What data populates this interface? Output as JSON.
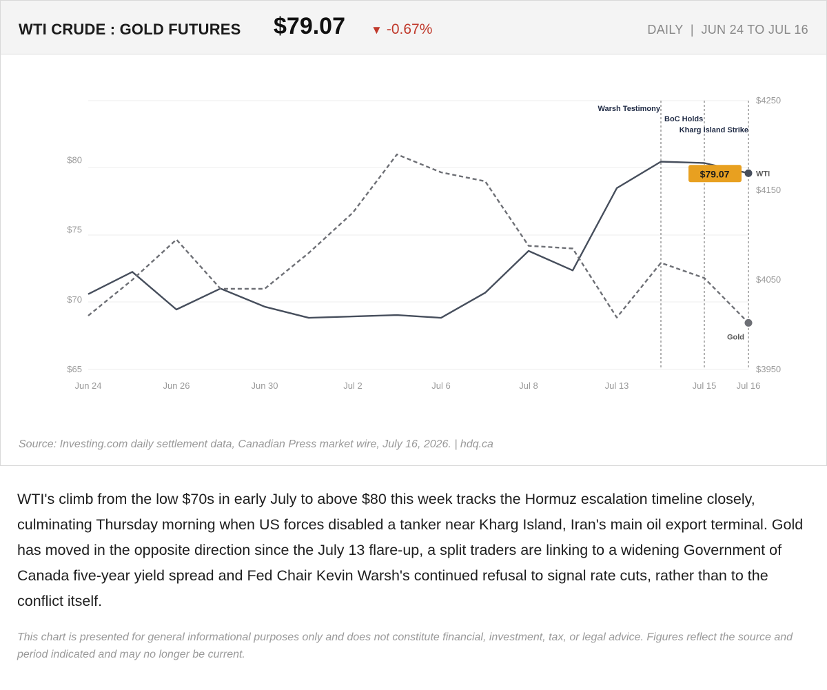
{
  "header": {
    "title": "WTI CRUDE : GOLD FUTURES",
    "price": "$79.07",
    "change_arrow": "▼",
    "change": "-0.67%",
    "period": "DAILY  |  JUN 24 TO JUL 16"
  },
  "source": "Source: Investing.com daily settlement data, Canadian Press market wire, July 16, 2026.  |  hdq.ca",
  "body_text": "WTI's climb from the low $70s in early July to above $80 this week tracks the Hormuz escalation timeline closely, culminating Thursday morning when US forces disabled a tanker near Kharg Island, Iran's main oil export terminal. Gold has moved in the opposite direction since the July 13 flare-up, a split traders are linking to a widening Government of Canada five-year yield spread and Fed Chair Kevin Warsh's continued refusal to signal rate cuts, rather than to the conflict itself.",
  "disclaimer": "This chart is presented for general informational purposes only and does not constitute financial, investment, tax, or legal advice. Figures reflect the source and period indicated and may no longer be current.",
  "colors": {
    "wti": "#464e5c",
    "gold": "#6d6f75",
    "badge": "#e8a020",
    "grid": "#eeeeee",
    "annotation_line": "#8a8a8a",
    "down": "#c0392b"
  },
  "chart_data": {
    "type": "line",
    "title": "WTI CRUDE : GOLD FUTURES",
    "categories": [
      "Jun 24",
      "Jun 25",
      "Jun 26",
      "Jun 29",
      "Jun 30",
      "Jul 1",
      "Jul 2",
      "Jul 3",
      "Jul 6",
      "Jul 7",
      "Jul 8",
      "Jul 9",
      "Jul 13",
      "Jul 14",
      "Jul 15",
      "Jul 16"
    ],
    "x_tick_labels": [
      "Jun 24",
      "Jun 26",
      "Jun 30",
      "Jul 2",
      "Jul 6",
      "Jul 8",
      "Jul 13",
      "Jul 15",
      "Jul 16"
    ],
    "series": [
      {
        "name": "WTI",
        "axis": "left",
        "style": "solid",
        "values": [
          70.4,
          72.0,
          69.3,
          70.8,
          69.5,
          68.7,
          68.8,
          68.9,
          68.7,
          70.5,
          73.5,
          72.1,
          78.0,
          79.9,
          79.8,
          79.07
        ]
      },
      {
        "name": "Gold",
        "axis": "right",
        "style": "dashed",
        "values": [
          4010,
          4050,
          4095,
          4040,
          4040,
          4080,
          4125,
          4190,
          4170,
          4160,
          4088,
          4085,
          4008,
          4069,
          4052,
          4002
        ]
      }
    ],
    "y_left": {
      "ticks": [
        "$65",
        "$70",
        "$75",
        "$80"
      ],
      "tick_values": [
        65,
        70,
        75,
        80
      ],
      "range": [
        65,
        82
      ]
    },
    "y_right": {
      "ticks": [
        "$3950",
        "$4050",
        "$4150",
        "$4250"
      ],
      "tick_values": [
        3950,
        4050,
        4150,
        4250
      ],
      "range": [
        3950,
        4250
      ]
    },
    "annotations": [
      {
        "label": "Warsh Testimony",
        "at": "Jul 14"
      },
      {
        "label": "BoC Holds",
        "at": "Jul 15"
      },
      {
        "label": "Kharg Island Strike",
        "at": "Jul 16"
      }
    ],
    "last_value_label": "$79.07",
    "grid": "horizontal"
  }
}
